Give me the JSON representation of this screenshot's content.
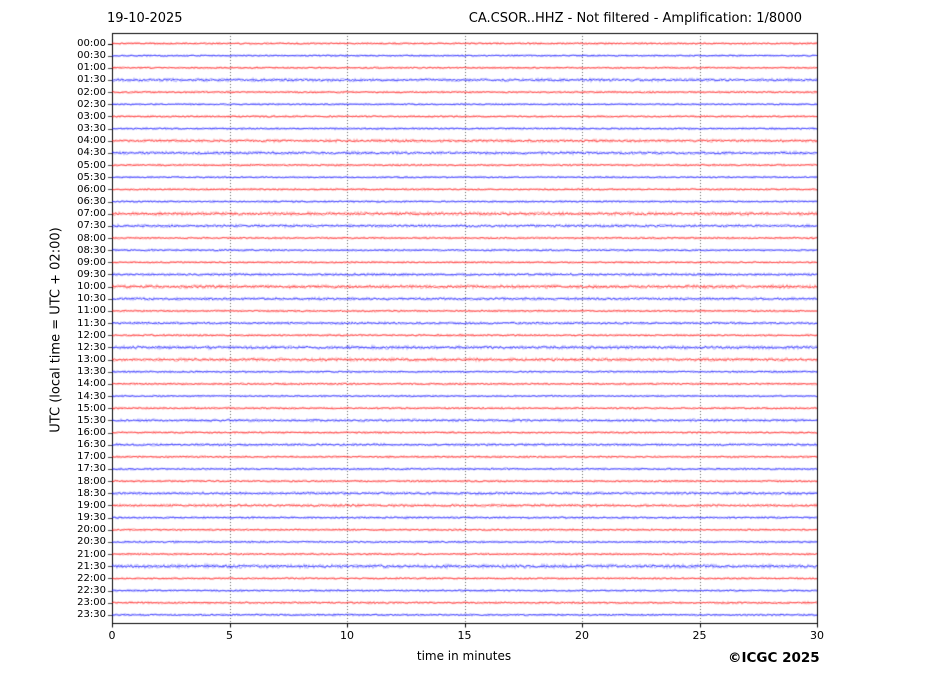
{
  "header": {
    "date": "19-10-2025",
    "title": "CA.CSOR..HHZ - Not filtered - Amplification: 1/8000"
  },
  "footer": {
    "copyright": "©ICGC 2025"
  },
  "chart_data": {
    "type": "line",
    "variant": "helicorder-seismogram",
    "title": "CA.CSOR..HHZ - Not filtered - Amplification: 1/8000",
    "date": "19-10-2025",
    "xlabel": "time in minutes",
    "ylabel": "UTC (local time = UTC + 02:00)",
    "xlim": [
      0,
      30
    ],
    "x_ticks": [
      0,
      5,
      10,
      15,
      20,
      25,
      30
    ],
    "grid_x": [
      5,
      10,
      15,
      20,
      25
    ],
    "grid_style": "dotted-vertical-gray",
    "legend_position": "none",
    "colors": {
      "hour_trace": "#ff0000",
      "half_hour_trace": "#0000ff",
      "grid": "#666666",
      "frame": "#000000",
      "background": "#ffffff"
    },
    "rows": [
      {
        "label": "00:00",
        "color": "#ff0000",
        "noise_amp": 1.0
      },
      {
        "label": "00:30",
        "color": "#0000ff",
        "noise_amp": 0.9
      },
      {
        "label": "01:00",
        "color": "#ff0000",
        "noise_amp": 0.9
      },
      {
        "label": "01:30",
        "color": "#0000ff",
        "noise_amp": 1.5
      },
      {
        "label": "02:00",
        "color": "#ff0000",
        "noise_amp": 1.0
      },
      {
        "label": "02:30",
        "color": "#0000ff",
        "noise_amp": 0.9
      },
      {
        "label": "03:00",
        "color": "#ff0000",
        "noise_amp": 1.0
      },
      {
        "label": "03:30",
        "color": "#0000ff",
        "noise_amp": 1.0
      },
      {
        "label": "04:00",
        "color": "#ff0000",
        "noise_amp": 1.4
      },
      {
        "label": "04:30",
        "color": "#0000ff",
        "noise_amp": 1.5
      },
      {
        "label": "05:00",
        "color": "#ff0000",
        "noise_amp": 1.0
      },
      {
        "label": "05:30",
        "color": "#0000ff",
        "noise_amp": 0.9
      },
      {
        "label": "06:00",
        "color": "#ff0000",
        "noise_amp": 1.0
      },
      {
        "label": "06:30",
        "color": "#0000ff",
        "noise_amp": 1.0
      },
      {
        "label": "07:00",
        "color": "#ff0000",
        "noise_amp": 1.7
      },
      {
        "label": "07:30",
        "color": "#0000ff",
        "noise_amp": 1.4
      },
      {
        "label": "08:00",
        "color": "#ff0000",
        "noise_amp": 1.0
      },
      {
        "label": "08:30",
        "color": "#0000ff",
        "noise_amp": 1.0
      },
      {
        "label": "09:00",
        "color": "#ff0000",
        "noise_amp": 0.9
      },
      {
        "label": "09:30",
        "color": "#0000ff",
        "noise_amp": 1.3
      },
      {
        "label": "10:00",
        "color": "#ff0000",
        "noise_amp": 1.7
      },
      {
        "label": "10:30",
        "color": "#0000ff",
        "noise_amp": 1.4
      },
      {
        "label": "11:00",
        "color": "#ff0000",
        "noise_amp": 1.0
      },
      {
        "label": "11:30",
        "color": "#0000ff",
        "noise_amp": 1.2
      },
      {
        "label": "12:00",
        "color": "#ff0000",
        "noise_amp": 1.0
      },
      {
        "label": "12:30",
        "color": "#0000ff",
        "noise_amp": 1.6
      },
      {
        "label": "13:00",
        "color": "#ff0000",
        "noise_amp": 1.6
      },
      {
        "label": "13:30",
        "color": "#0000ff",
        "noise_amp": 1.0
      },
      {
        "label": "14:00",
        "color": "#ff0000",
        "noise_amp": 1.0
      },
      {
        "label": "14:30",
        "color": "#0000ff",
        "noise_amp": 0.9
      },
      {
        "label": "15:00",
        "color": "#ff0000",
        "noise_amp": 1.0
      },
      {
        "label": "15:30",
        "color": "#0000ff",
        "noise_amp": 1.3
      },
      {
        "label": "16:00",
        "color": "#ff0000",
        "noise_amp": 1.0
      },
      {
        "label": "16:30",
        "color": "#0000ff",
        "noise_amp": 1.2
      },
      {
        "label": "17:00",
        "color": "#ff0000",
        "noise_amp": 1.0
      },
      {
        "label": "17:30",
        "color": "#0000ff",
        "noise_amp": 1.0
      },
      {
        "label": "18:00",
        "color": "#ff0000",
        "noise_amp": 1.0
      },
      {
        "label": "18:30",
        "color": "#0000ff",
        "noise_amp": 1.4
      },
      {
        "label": "19:00",
        "color": "#ff0000",
        "noise_amp": 1.4
      },
      {
        "label": "19:30",
        "color": "#0000ff",
        "noise_amp": 1.1
      },
      {
        "label": "20:00",
        "color": "#ff0000",
        "noise_amp": 1.0
      },
      {
        "label": "20:30",
        "color": "#0000ff",
        "noise_amp": 1.0
      },
      {
        "label": "21:00",
        "color": "#ff0000",
        "noise_amp": 1.0
      },
      {
        "label": "21:30",
        "color": "#0000ff",
        "noise_amp": 1.8
      },
      {
        "label": "22:00",
        "color": "#ff0000",
        "noise_amp": 1.0
      },
      {
        "label": "22:30",
        "color": "#0000ff",
        "noise_amp": 1.0
      },
      {
        "label": "23:00",
        "color": "#ff0000",
        "noise_amp": 1.1
      },
      {
        "label": "23:30",
        "color": "#0000ff",
        "noise_amp": 1.0
      }
    ]
  }
}
